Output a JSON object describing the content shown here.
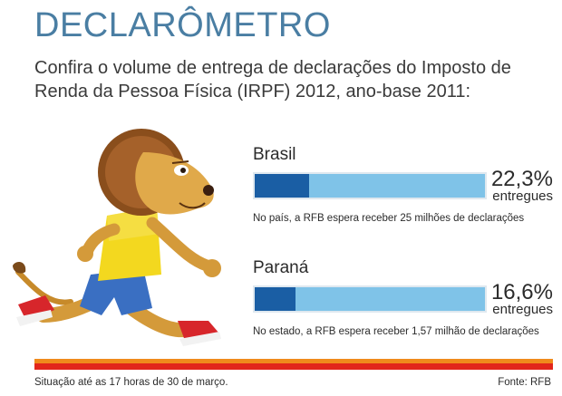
{
  "header": {
    "title": "DECLARÔMETRO",
    "subtitle": "Confira o volume de entrega de declarações do Imposto de Renda da Pessoa Física (IRPF) 2012, ano-base 2011:"
  },
  "stats": [
    {
      "label": "Brasil",
      "percent_text": "22,3%",
      "unit_text": "entregues",
      "fraction": 0.223,
      "note": "No país, a RFB espera receber 25 milhões de declarações"
    },
    {
      "label": "Paraná",
      "percent_text": "16,6%",
      "unit_text": "entregues",
      "fraction": 0.166,
      "note": "No estado, a RFB espera receber 1,57 milhão de declarações"
    }
  ],
  "footer": {
    "status": "Situação até as 17 horas de 30 de março.",
    "source": "Fonte: RFB"
  },
  "colors": {
    "title": "#4a7ea3",
    "bar_track": "#7fc3e8",
    "bar_fill": "#1a5ea4",
    "rule_red": "#e2261b",
    "rule_orange": "#f08a1c"
  },
  "mascot": {
    "icon": "running-lion-illustration"
  }
}
